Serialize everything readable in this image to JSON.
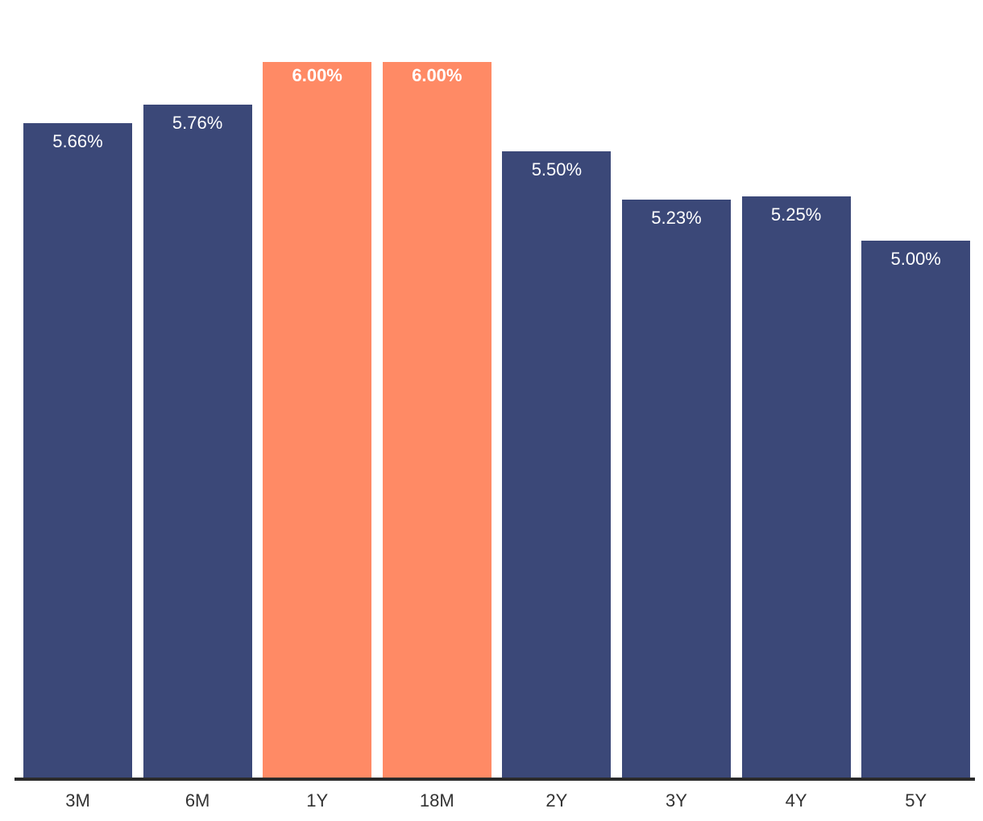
{
  "chart_data": {
    "type": "bar",
    "categories": [
      "3M",
      "6M",
      "1Y",
      "18M",
      "2Y",
      "3Y",
      "4Y",
      "5Y"
    ],
    "values": [
      5.66,
      5.76,
      6.0,
      6.0,
      5.5,
      5.23,
      5.25,
      5.0
    ],
    "data_labels": [
      "5.66%",
      "5.76%",
      "6.00%",
      "6.00%",
      "5.50%",
      "5.23%",
      "5.25%",
      "5.00%"
    ],
    "highlighted": [
      false,
      false,
      true,
      true,
      false,
      false,
      false,
      false
    ],
    "title": "",
    "xlabel": "",
    "ylabel": "",
    "ylim": [
      2.0,
      6.35
    ],
    "grid": false,
    "legend": false,
    "colors": {
      "bar": "#3B4878",
      "highlight": "#FF8A65",
      "data_label": "#FFFFFF",
      "axis_line": "#2B2B2B",
      "tick_label": "#333333",
      "background": "#FFFFFF"
    }
  }
}
